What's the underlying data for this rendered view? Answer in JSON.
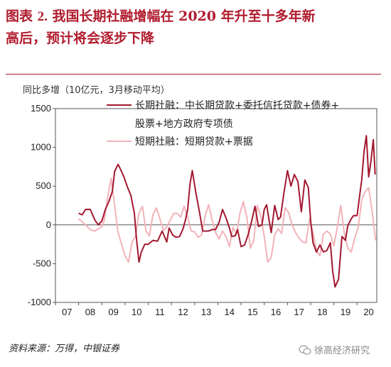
{
  "title": {
    "prefix": "图表 ",
    "number": "2.",
    "text_line1": " 我国长期社融增幅在 2020 年升至十多年新",
    "text_line2": "高后，预计将会逐步下降"
  },
  "source": "资料来源：万得，中银证券",
  "watermark": "徐高经济研究",
  "colors": {
    "long": "#a31830",
    "short": "#f2b3b8",
    "title": "#b01c2e"
  },
  "chart_data": {
    "type": "line",
    "ylabel": "同比多增（10亿元，3月移动平均）",
    "ylim": [
      -1000,
      1500
    ],
    "yticks": [
      -1000,
      -500,
      0,
      500,
      1000,
      1500
    ],
    "xlim": [
      2007,
      2020.85
    ],
    "xticks": [
      "07",
      "08",
      "09",
      "10",
      "11",
      "12",
      "13",
      "14",
      "15",
      "16",
      "17",
      "18",
      "19",
      "20"
    ],
    "legend": [
      {
        "name_line1": "长期社融：中长期贷款+委托信托贷款+债券+",
        "name_line2": "股票+地方政府专项债"
      },
      {
        "name_line1": "短期社融：短期贷款+票据"
      }
    ],
    "series": [
      {
        "name": "长期社融：中长期贷款+委托信托贷款+债券+股票+地方政府专项债",
        "x": [
          2008.0,
          2008.15,
          2008.3,
          2008.5,
          2008.7,
          2008.85,
          2009.0,
          2009.15,
          2009.3,
          2009.45,
          2009.55,
          2009.7,
          2009.8,
          2009.95,
          2010.1,
          2010.25,
          2010.4,
          2010.5,
          2010.6,
          2010.7,
          2010.85,
          2011.0,
          2011.2,
          2011.4,
          2011.6,
          2011.8,
          2011.9,
          2012.05,
          2012.2,
          2012.35,
          2012.5,
          2012.6,
          2012.7,
          2012.8,
          2012.9,
          2013.05,
          2013.2,
          2013.35,
          2013.45,
          2013.6,
          2013.75,
          2013.9,
          2014.05,
          2014.2,
          2014.35,
          2014.5,
          2014.6,
          2014.75,
          2014.85,
          2015.0,
          2015.15,
          2015.3,
          2015.45,
          2015.6,
          2015.75,
          2015.9,
          2016.0,
          2016.1,
          2016.2,
          2016.3,
          2016.45,
          2016.6,
          2016.7,
          2016.85,
          2017.0,
          2017.15,
          2017.3,
          2017.45,
          2017.6,
          2017.75,
          2017.9,
          2018.0,
          2018.1,
          2018.25,
          2018.4,
          2018.55,
          2018.7,
          2018.85,
          2018.95,
          2019.05,
          2019.2,
          2019.35,
          2019.5,
          2019.6,
          2019.75,
          2019.85,
          2020.0,
          2020.1,
          2020.2,
          2020.3,
          2020.4,
          2020.5,
          2020.6,
          2020.7,
          2020.78
        ],
        "values": [
          150,
          130,
          200,
          200,
          60,
          0,
          50,
          200,
          300,
          430,
          690,
          780,
          720,
          620,
          490,
          380,
          150,
          -200,
          -480,
          -350,
          -250,
          -250,
          -200,
          -210,
          -80,
          -220,
          -40,
          -130,
          -160,
          -150,
          -50,
          60,
          200,
          530,
          700,
          420,
          180,
          -80,
          -80,
          -80,
          -60,
          -60,
          30,
          200,
          90,
          -40,
          -150,
          -140,
          -60,
          -280,
          -260,
          -130,
          40,
          240,
          -20,
          0,
          200,
          260,
          80,
          -100,
          250,
          70,
          100,
          420,
          700,
          500,
          650,
          560,
          170,
          580,
          480,
          50,
          -230,
          -350,
          -260,
          -350,
          -330,
          -230,
          -600,
          -800,
          -700,
          -150,
          -200,
          -10,
          80,
          120,
          120,
          350,
          580,
          950,
          1150,
          620,
          820,
          1100,
          650
        ]
      },
      {
        "name": "短期社融：短期贷款+票据",
        "x": [
          2008.0,
          2008.15,
          2008.3,
          2008.5,
          2008.7,
          2008.85,
          2009.0,
          2009.1,
          2009.25,
          2009.4,
          2009.55,
          2009.7,
          2009.85,
          2010.0,
          2010.15,
          2010.3,
          2010.45,
          2010.6,
          2010.75,
          2010.9,
          2011.05,
          2011.2,
          2011.35,
          2011.5,
          2011.65,
          2011.8,
          2011.95,
          2012.1,
          2012.25,
          2012.4,
          2012.55,
          2012.7,
          2012.85,
          2013.0,
          2013.15,
          2013.3,
          2013.45,
          2013.6,
          2013.75,
          2013.9,
          2014.05,
          2014.2,
          2014.35,
          2014.5,
          2014.65,
          2014.8,
          2014.95,
          2015.1,
          2015.25,
          2015.4,
          2015.55,
          2015.7,
          2015.85,
          2016.0,
          2016.15,
          2016.3,
          2016.45,
          2016.6,
          2016.75,
          2016.9,
          2017.05,
          2017.2,
          2017.35,
          2017.5,
          2017.65,
          2017.8,
          2017.95,
          2018.1,
          2018.25,
          2018.4,
          2018.55,
          2018.7,
          2018.85,
          2019.0,
          2019.15,
          2019.3,
          2019.45,
          2019.6,
          2019.75,
          2019.9,
          2020.05,
          2020.2,
          2020.35,
          2020.5,
          2020.65,
          2020.8
        ],
        "values": [
          80,
          40,
          0,
          -60,
          -80,
          -50,
          -20,
          50,
          350,
          600,
          250,
          -100,
          -250,
          -400,
          -480,
          -220,
          -150,
          150,
          240,
          -80,
          -140,
          130,
          220,
          80,
          -70,
          -30,
          60,
          150,
          150,
          100,
          240,
          100,
          -80,
          -90,
          -160,
          -130,
          110,
          260,
          70,
          -100,
          -180,
          -80,
          -150,
          -280,
          -30,
          -120,
          150,
          300,
          100,
          -300,
          -200,
          250,
          120,
          -150,
          -480,
          -420,
          -130,
          -50,
          -110,
          220,
          160,
          0,
          -100,
          -170,
          -220,
          -230,
          80,
          -100,
          -330,
          -400,
          -120,
          -80,
          -120,
          -270,
          -30,
          250,
          -110,
          -300,
          -350,
          -170,
          -30,
          320,
          430,
          480,
          170,
          -200
        ]
      }
    ]
  }
}
